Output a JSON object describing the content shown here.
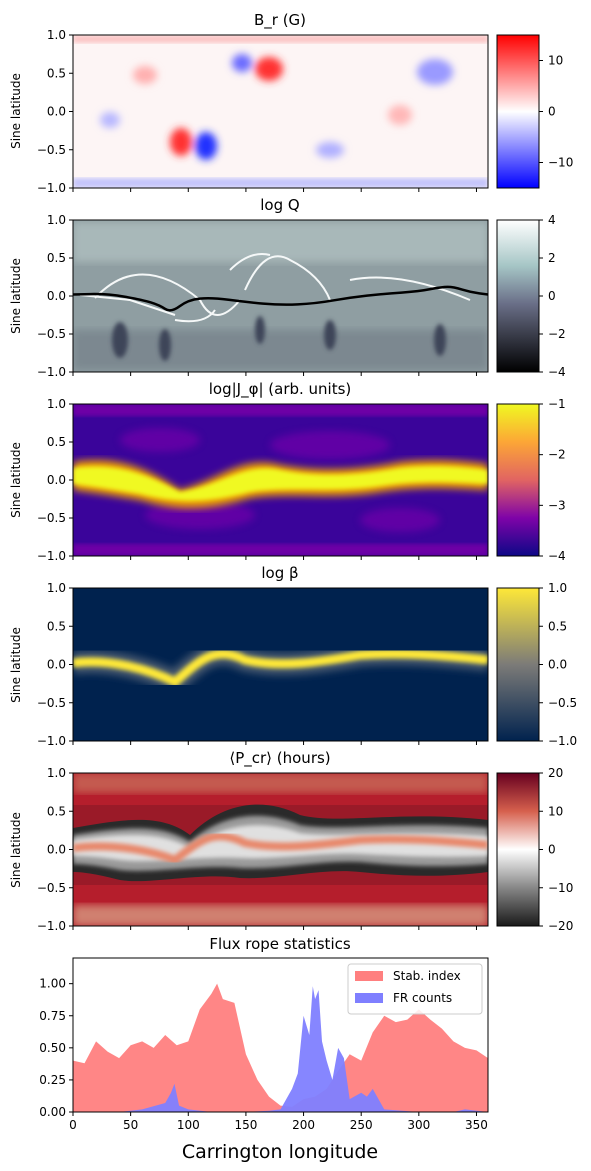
{
  "chart_data": [
    {
      "type": "heatmap",
      "title": "B_r (G)",
      "ylabel": "Sine latitude",
      "xlim": [
        0,
        360
      ],
      "ylim": [
        -1,
        1
      ],
      "yticks": [
        "1.0",
        "0.5",
        "0.0",
        "−0.5",
        "−1.0"
      ],
      "colormap": "bwr",
      "colorbar": {
        "range": [
          -15,
          15
        ],
        "ticks": [
          "10",
          "0",
          "−10"
        ]
      }
    },
    {
      "type": "heatmap",
      "title": "log Q",
      "ylabel": "Sine latitude",
      "xlim": [
        0,
        360
      ],
      "ylim": [
        -1,
        1
      ],
      "yticks": [
        "1.0",
        "0.5",
        "0.0",
        "−0.5",
        "−1.0"
      ],
      "colormap": "bone",
      "colorbar": {
        "range": [
          -4,
          4
        ],
        "ticks": [
          "4",
          "2",
          "0",
          "−2",
          "−4"
        ]
      },
      "contour": {
        "x": [
          0,
          30,
          60,
          75,
          85,
          100,
          120,
          150,
          180,
          210,
          240,
          270,
          300,
          320,
          330,
          345,
          360
        ],
        "y": [
          0.02,
          0.03,
          -0.05,
          -0.12,
          -0.22,
          -0.05,
          -0.02,
          -0.08,
          -0.12,
          -0.1,
          -0.02,
          0.03,
          0.06,
          0.12,
          0.12,
          0.05,
          0.02
        ]
      }
    },
    {
      "type": "heatmap",
      "title": "log|J_φ| (arb. units)",
      "ylabel": "Sine latitude",
      "xlim": [
        0,
        360
      ],
      "ylim": [
        -1,
        1
      ],
      "yticks": [
        "1.0",
        "0.5",
        "0.0",
        "−0.5",
        "−1.0"
      ],
      "colormap": "plasma",
      "colorbar": {
        "range": [
          -4,
          -1
        ],
        "ticks": [
          "−1",
          "−2",
          "−3",
          "−4"
        ]
      }
    },
    {
      "type": "heatmap",
      "title": "log β",
      "ylabel": "Sine latitude",
      "xlim": [
        0,
        360
      ],
      "ylim": [
        -1,
        1
      ],
      "yticks": [
        "1.0",
        "0.5",
        "0.0",
        "−0.5",
        "−1.0"
      ],
      "colormap": "cividis",
      "colorbar": {
        "range": [
          -1,
          1
        ],
        "ticks": [
          "1.0",
          "0.5",
          "0.0",
          "−0.5",
          "−1.0"
        ]
      }
    },
    {
      "type": "heatmap",
      "title": "⟨P_cr⟩ (hours)",
      "ylabel": "Sine latitude",
      "xlim": [
        0,
        360
      ],
      "ylim": [
        -1,
        1
      ],
      "yticks": [
        "1.0",
        "0.5",
        "0.0",
        "−0.5",
        "−1.0"
      ],
      "colormap": "RdGy",
      "colorbar": {
        "range": [
          -20,
          20
        ],
        "ticks": [
          "20",
          "10",
          "0",
          "−10",
          "−20"
        ]
      }
    },
    {
      "type": "area",
      "title": "Flux rope statistics",
      "xlabel": "Carrington longitude",
      "xlim": [
        0,
        360
      ],
      "ylim": [
        0,
        1.2
      ],
      "xticks": [
        "0",
        "50",
        "100",
        "150",
        "200",
        "250",
        "300",
        "350"
      ],
      "yticks": [
        "1.00",
        "0.75",
        "0.50",
        "0.25",
        "0.00"
      ],
      "legend": "top-right",
      "series": [
        {
          "name": "Stab. index",
          "color": "#ff7f7f",
          "x": [
            0,
            10,
            20,
            30,
            40,
            50,
            60,
            70,
            80,
            90,
            100,
            110,
            120,
            125,
            130,
            140,
            150,
            160,
            170,
            180,
            190,
            200,
            210,
            220,
            230,
            240,
            250,
            260,
            270,
            280,
            290,
            300,
            310,
            320,
            330,
            340,
            350,
            360
          ],
          "values": [
            0.4,
            0.38,
            0.55,
            0.47,
            0.42,
            0.52,
            0.55,
            0.5,
            0.6,
            0.52,
            0.55,
            0.8,
            0.92,
            1.0,
            0.88,
            0.85,
            0.45,
            0.25,
            0.12,
            0.05,
            0.04,
            0.1,
            0.12,
            0.18,
            0.32,
            0.45,
            0.4,
            0.62,
            0.75,
            0.7,
            0.72,
            0.8,
            0.72,
            0.65,
            0.55,
            0.5,
            0.48,
            0.42
          ]
        },
        {
          "name": "FR counts",
          "color": "#7f7fff",
          "x": [
            0,
            40,
            60,
            80,
            85,
            88,
            92,
            100,
            120,
            150,
            170,
            180,
            190,
            195,
            200,
            205,
            208,
            210,
            213,
            216,
            220,
            225,
            230,
            235,
            240,
            250,
            255,
            260,
            265,
            270,
            300,
            330,
            340,
            360
          ],
          "values": [
            0,
            0,
            0.02,
            0.07,
            0.15,
            0.22,
            0.05,
            0.02,
            0.0,
            0.0,
            0.01,
            0.02,
            0.18,
            0.3,
            0.75,
            0.6,
            0.98,
            0.88,
            0.95,
            0.55,
            0.4,
            0.25,
            0.5,
            0.42,
            0.1,
            0.15,
            0.12,
            0.18,
            0.1,
            0.02,
            0.0,
            0.0,
            0.02,
            0.0
          ]
        }
      ]
    }
  ]
}
